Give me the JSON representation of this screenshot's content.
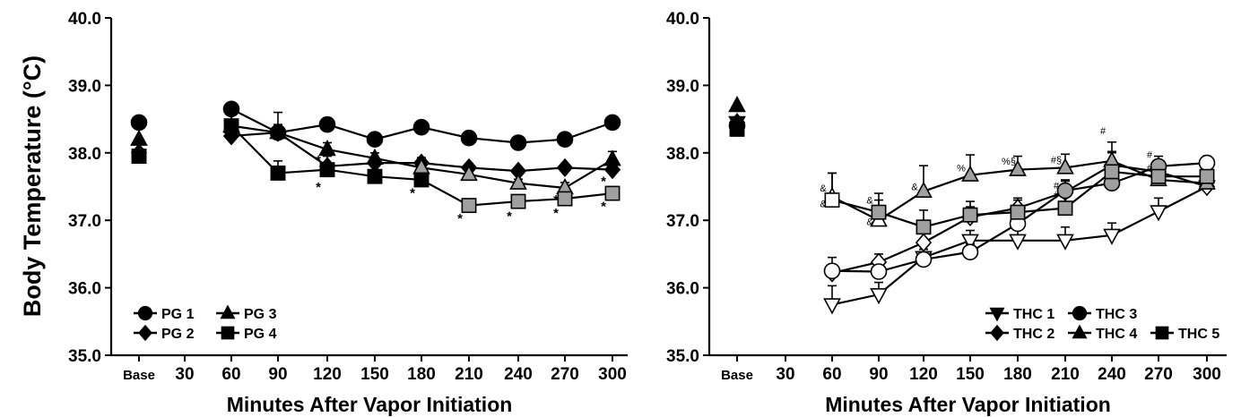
{
  "y_axis_title": "Body Temperature (°C)",
  "chart_data": [
    {
      "type": "line",
      "title": "",
      "xlabel": "Minutes After Vapor Initiation",
      "ylabel": "Body Temperature (°C)",
      "ylim": [
        35.0,
        40.0
      ],
      "yticks": [
        "35.0",
        "36.0",
        "37.0",
        "38.0",
        "39.0",
        "40.0"
      ],
      "categories": [
        "Base",
        "30",
        "60",
        "90",
        "120",
        "150",
        "180",
        "210",
        "240",
        "270",
        "300"
      ],
      "legend_position": "bottom-left",
      "legend_columns": 2,
      "series": [
        {
          "name": "PG 1",
          "marker": "circle",
          "color": "#000000",
          "fill": "#000000",
          "base": 38.45,
          "x": [
            "60",
            "90",
            "120",
            "150",
            "180",
            "210",
            "240",
            "270",
            "300"
          ],
          "values": [
            38.65,
            38.3,
            38.42,
            38.2,
            38.38,
            38.22,
            38.15,
            38.2,
            38.45
          ],
          "errors": [
            0.07,
            0.08,
            0.1,
            0.08,
            0.05,
            0.05,
            0.05,
            0.08,
            0.05
          ]
        },
        {
          "name": "PG 2",
          "marker": "diamond",
          "color": "#000000",
          "fill": "#000000",
          "base": 38.0,
          "x": [
            "60",
            "90",
            "120",
            "150",
            "180",
            "210",
            "240",
            "270",
            "300"
          ],
          "values": [
            38.25,
            38.3,
            37.8,
            37.85,
            37.85,
            37.78,
            37.73,
            37.78,
            37.75
          ],
          "errors": [
            0.07,
            0.3,
            0.15,
            0.08,
            0.08,
            0.06,
            0.05,
            0.05,
            0.05
          ]
        },
        {
          "name": "PG 3",
          "marker": "triangle",
          "color": "#000000",
          "fill": "#000000",
          "base": 38.2,
          "x": [
            "60",
            "90",
            "120",
            "150",
            "180",
            "210",
            "240",
            "270",
            "300"
          ],
          "values": [
            38.4,
            38.3,
            38.05,
            37.92,
            37.78,
            37.68,
            37.55,
            37.48,
            37.9
          ],
          "errors": [
            0.08,
            0.12,
            0.1,
            0.08,
            0.06,
            0.06,
            0.06,
            0.08,
            0.12
          ]
        },
        {
          "name": "PG 4",
          "marker": "square",
          "color": "#000000",
          "fill": "#000000",
          "base": 37.95,
          "x": [
            "60",
            "90",
            "120",
            "150",
            "180",
            "210",
            "240",
            "270",
            "300"
          ],
          "values": [
            38.4,
            37.7,
            37.75,
            37.65,
            37.6,
            37.22,
            37.28,
            37.32,
            37.4
          ],
          "errors": [
            0.07,
            0.18,
            0.1,
            0.08,
            0.08,
            0.05,
            0.05,
            0.06,
            0.06
          ]
        }
      ],
      "marker_fills": {
        "PG 3": [
          "#000000",
          "#000000",
          "#000000",
          "#000000",
          "#a0a0a0",
          "#a0a0a0",
          "#a0a0a0",
          "#a0a0a0",
          "#000000"
        ],
        "PG 4": [
          "#000000",
          "#000000",
          "#000000",
          "#000000",
          "#000000",
          "#a0a0a0",
          "#a0a0a0",
          "#a0a0a0",
          "#a0a0a0"
        ]
      },
      "annotations": [
        {
          "x": "120",
          "y": 37.93,
          "text": "*"
        },
        {
          "x": "120",
          "y": 37.53,
          "text": "*"
        },
        {
          "x": "180",
          "y": 37.45,
          "text": "*"
        },
        {
          "x": "210",
          "y": 37.07,
          "text": "*"
        },
        {
          "x": "240",
          "y": 37.1,
          "text": "*"
        },
        {
          "x": "270",
          "y": 37.15,
          "text": "*"
        },
        {
          "x": "270",
          "y": 37.35,
          "text": "*"
        },
        {
          "x": "300",
          "y": 37.25,
          "text": "*"
        },
        {
          "x": "300",
          "y": 37.62,
          "text": "*"
        }
      ]
    },
    {
      "type": "line",
      "title": "",
      "xlabel": "Minutes After Vapor Initiation",
      "ylabel": "",
      "ylim": [
        35.0,
        40.0
      ],
      "yticks": [
        "35.0",
        "36.0",
        "37.0",
        "38.0",
        "39.0",
        "40.0"
      ],
      "categories": [
        "Base",
        "30",
        "60",
        "90",
        "120",
        "150",
        "180",
        "210",
        "240",
        "270",
        "300"
      ],
      "legend_position": "bottom-right",
      "legend_columns": 3,
      "series": [
        {
          "name": "THC 1",
          "marker": "triangle-down",
          "color": "#000000",
          "fill": "#ffffff",
          "base": 38.45,
          "x": [
            "60",
            "90",
            "120",
            "150",
            "180",
            "210",
            "240",
            "270",
            "300"
          ],
          "values": [
            35.75,
            35.9,
            36.45,
            36.7,
            36.7,
            36.7,
            36.78,
            37.13,
            37.5
          ],
          "errors": [
            0.28,
            0.18,
            0.12,
            0.15,
            0.22,
            0.2,
            0.18,
            0.2,
            0.2
          ]
        },
        {
          "name": "THC 2",
          "marker": "diamond",
          "color": "#000000",
          "fill": "#ffffff",
          "base": 38.45,
          "x": [
            "60",
            "90",
            "120",
            "150",
            "180",
            "210",
            "240",
            "270",
            "300"
          ],
          "values": [
            36.22,
            36.38,
            36.67,
            37.05,
            37.18,
            37.42,
            37.82,
            37.72,
            37.5
          ],
          "errors": [
            0.12,
            0.12,
            0.15,
            0.15,
            0.15,
            0.18,
            0.18,
            0.15,
            0.12
          ]
        },
        {
          "name": "THC 3",
          "marker": "circle",
          "color": "#000000",
          "fill": "#ffffff",
          "base": 38.4,
          "x": [
            "60",
            "90",
            "120",
            "150",
            "180",
            "210",
            "240",
            "270",
            "300"
          ],
          "values": [
            36.25,
            36.24,
            36.42,
            36.53,
            36.95,
            37.44,
            37.55,
            37.8,
            37.85
          ],
          "errors": [
            0.2,
            0.14,
            0.15,
            0.12,
            0.12,
            0.14,
            0.15,
            0.15,
            0.1
          ]
        },
        {
          "name": "THC 4",
          "marker": "triangle",
          "color": "#000000",
          "fill": "#ffffff",
          "base": 38.7,
          "x": [
            "60",
            "90",
            "120",
            "150",
            "180",
            "210",
            "240",
            "270",
            "300"
          ],
          "values": [
            37.35,
            37.0,
            37.43,
            37.67,
            37.75,
            37.78,
            37.88,
            37.6,
            37.55
          ],
          "errors": [
            0.35,
            0.3,
            0.38,
            0.3,
            0.2,
            0.2,
            0.28,
            0.2,
            0.2
          ]
        },
        {
          "name": "THC 5",
          "marker": "square",
          "color": "#000000",
          "fill": "#ffffff",
          "base": 38.35,
          "x": [
            "60",
            "90",
            "120",
            "150",
            "180",
            "210",
            "240",
            "270",
            "300"
          ],
          "values": [
            37.3,
            37.12,
            36.9,
            37.08,
            37.12,
            37.18,
            37.72,
            37.65,
            37.65
          ],
          "errors": [
            0.4,
            0.28,
            0.25,
            0.2,
            0.18,
            0.18,
            0.3,
            0.2,
            0.2
          ]
        }
      ],
      "marker_fills": {
        "THC 4": [
          "#ffffff",
          "#ffffff",
          "#a0a0a0",
          "#a0a0a0",
          "#a0a0a0",
          "#a0a0a0",
          "#a0a0a0",
          "#a0a0a0",
          "#a0a0a0"
        ],
        "THC 5": [
          "#ffffff",
          "#a0a0a0",
          "#a0a0a0",
          "#a0a0a0",
          "#a0a0a0",
          "#a0a0a0",
          "#a0a0a0",
          "#a0a0a0",
          "#a0a0a0"
        ],
        "THC 2": [
          "#ffffff",
          "#ffffff",
          "#ffffff",
          "#ffffff",
          "#ffffff",
          "#a0a0a0",
          "#a0a0a0",
          "#a0a0a0",
          "#ffffff"
        ],
        "THC 3": [
          "#ffffff",
          "#ffffff",
          "#ffffff",
          "#ffffff",
          "#ffffff",
          "#a0a0a0",
          "#a0a0a0",
          "#a0a0a0",
          "#ffffff"
        ]
      },
      "base_fills": {
        "THC 1": "#000000",
        "THC 2": "#000000",
        "THC 3": "#000000",
        "THC 4": "#000000",
        "THC 5": "#000000"
      },
      "annotations": [
        {
          "x": "60",
          "y": 37.48,
          "text": "&"
        },
        {
          "x": "60",
          "y": 37.25,
          "text": "&"
        },
        {
          "x": "90",
          "y": 37.3,
          "text": "&"
        },
        {
          "x": "90",
          "y": 36.98,
          "text": "&"
        },
        {
          "x": "120",
          "y": 37.5,
          "text": "&"
        },
        {
          "x": "150",
          "y": 37.78,
          "text": "%"
        },
        {
          "x": "180",
          "y": 37.88,
          "text": "%§"
        },
        {
          "x": "210",
          "y": 37.9,
          "text": "#§"
        },
        {
          "x": "210",
          "y": 37.52,
          "text": "#"
        },
        {
          "x": "210",
          "y": 37.38,
          "text": "#"
        },
        {
          "x": "240",
          "y": 38.33,
          "text": "#"
        },
        {
          "x": "270",
          "y": 37.98,
          "text": "#"
        },
        {
          "x": "270",
          "y": 37.78,
          "text": "#"
        }
      ]
    }
  ]
}
